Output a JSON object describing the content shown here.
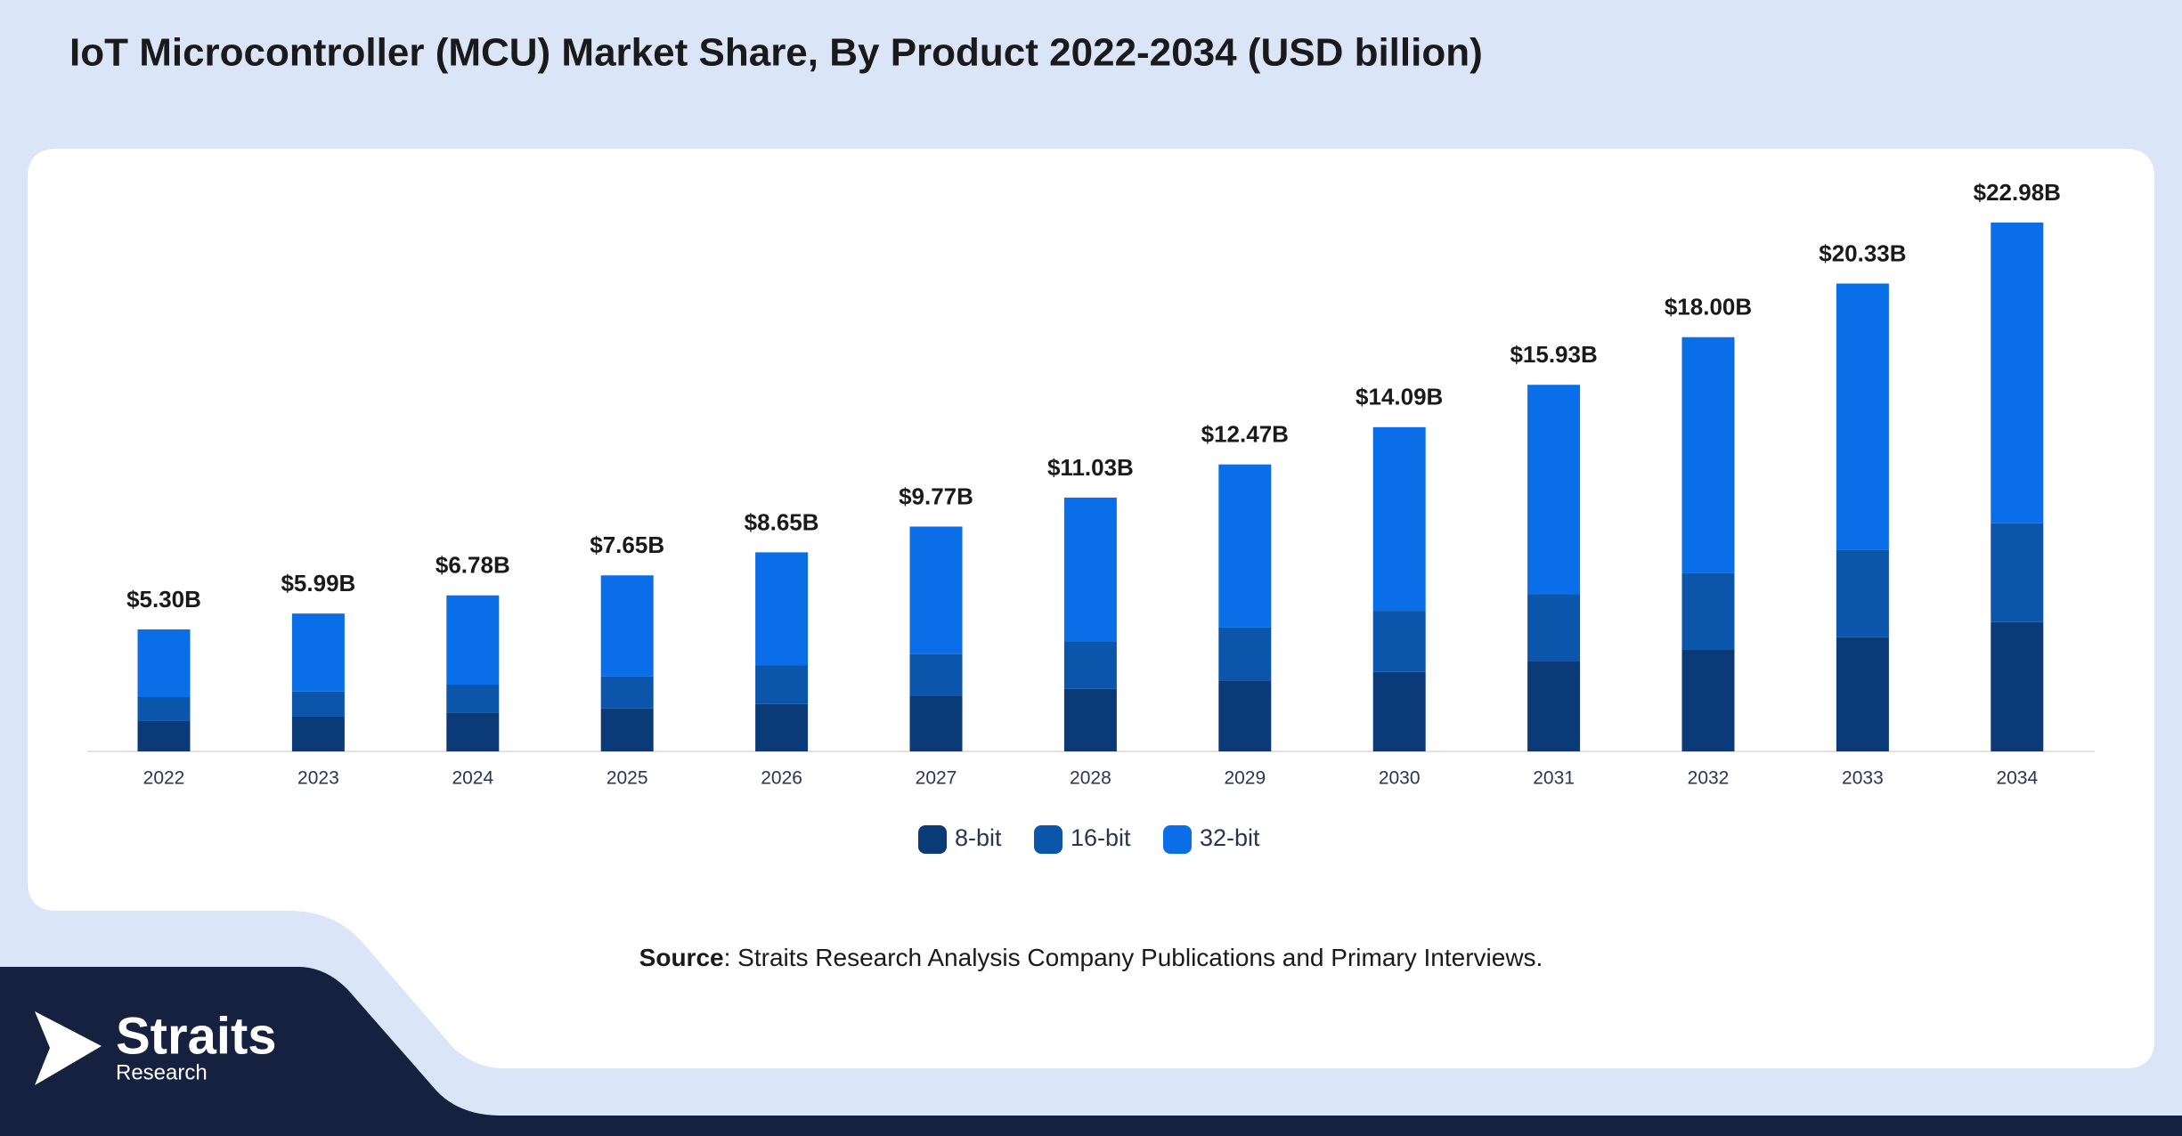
{
  "chart_data": {
    "type": "stacked-bar",
    "title": "IoT Microcontroller (MCU) Market Share, By Product 2022-2034 (USD billion)",
    "categories": [
      "2022",
      "2023",
      "2024",
      "2025",
      "2026",
      "2027",
      "2028",
      "2029",
      "2030",
      "2031",
      "2032",
      "2033",
      "2034"
    ],
    "series": [
      {
        "name": "8-bit",
        "color": "#0a3a78",
        "values": [
          1.33,
          1.51,
          1.69,
          1.87,
          2.06,
          2.42,
          2.72,
          3.08,
          3.45,
          3.93,
          4.41,
          4.96,
          5.62
        ]
      },
      {
        "name": "16-bit",
        "color": "#0b56ab",
        "values": [
          1.03,
          1.09,
          1.21,
          1.39,
          1.69,
          1.81,
          2.06,
          2.3,
          2.66,
          2.9,
          3.33,
          3.81,
          4.29
        ]
      },
      {
        "name": "32-bit",
        "color": "#0a6ee8",
        "values": [
          2.94,
          3.39,
          3.88,
          4.39,
          4.9,
          5.54,
          6.25,
          7.09,
          7.98,
          9.1,
          10.26,
          11.56,
          13.07
        ]
      }
    ],
    "totals": {
      "values": [
        5.3,
        5.99,
        6.78,
        7.65,
        8.65,
        9.77,
        11.03,
        12.47,
        14.09,
        15.93,
        18.0,
        20.33,
        22.98
      ],
      "value_labels": [
        "$5.30B",
        "$5.99B",
        "$6.78B",
        "$7.65B",
        "$8.65B",
        "$9.77B",
        "$11.03B",
        "$12.47B",
        "$14.09B",
        "$15.93B",
        "$18.00B",
        "$20.33B",
        "$22.98B"
      ]
    },
    "legend": "bottom"
  },
  "source": {
    "label": "Source",
    "text": ": Straits Research Analysis Company Publications and Primary Interviews."
  },
  "logo": {
    "name": "Straits",
    "sub": "Research"
  }
}
